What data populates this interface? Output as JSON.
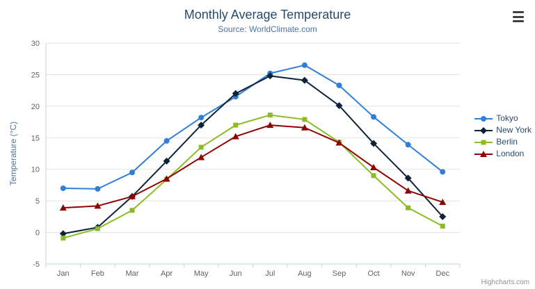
{
  "chart_data": {
    "type": "line",
    "title": "Monthly Average Temperature",
    "subtitle": "Source: WorldClimate.com",
    "categories": [
      "Jan",
      "Feb",
      "Mar",
      "Apr",
      "May",
      "Jun",
      "Jul",
      "Aug",
      "Sep",
      "Oct",
      "Nov",
      "Dec"
    ],
    "ylabel": "Temperature (°C)",
    "ylim": [
      -5,
      30
    ],
    "ytick_interval": 5,
    "grid": true,
    "legend_position": "right",
    "series": [
      {
        "name": "Tokyo",
        "color": "#2f7ed8",
        "marker": "circle",
        "values": [
          7.0,
          6.9,
          9.5,
          14.5,
          18.2,
          21.5,
          25.2,
          26.5,
          23.3,
          18.3,
          13.9,
          9.6
        ]
      },
      {
        "name": "New York",
        "color": "#0d233a",
        "marker": "diamond",
        "values": [
          -0.2,
          0.8,
          5.7,
          11.3,
          17.0,
          22.0,
          24.8,
          24.1,
          20.1,
          14.1,
          8.6,
          2.5
        ]
      },
      {
        "name": "Berlin",
        "color": "#8bbc21",
        "marker": "square",
        "values": [
          -0.9,
          0.6,
          3.5,
          8.4,
          13.5,
          17.0,
          18.6,
          17.9,
          14.3,
          9.0,
          3.9,
          1.0
        ]
      },
      {
        "name": "London",
        "color": "#910000",
        "marker": "triangle",
        "values": [
          3.9,
          4.2,
          5.7,
          8.5,
          11.9,
          15.2,
          17.0,
          16.6,
          14.2,
          10.3,
          6.6,
          4.8
        ]
      }
    ]
  },
  "credits": "Highcharts.com",
  "icons": {
    "export_menu": "hamburger-icon"
  },
  "colors": {
    "title": "#274b6d",
    "subtitle": "#4d759e",
    "axis_label": "#606060",
    "axis_title": "#4d759e",
    "grid": "#e0e0e0",
    "axis_line": "#c0d0e0",
    "legend_text": "#274b6d",
    "credits": "#909090",
    "menu_icon": "#404040"
  }
}
